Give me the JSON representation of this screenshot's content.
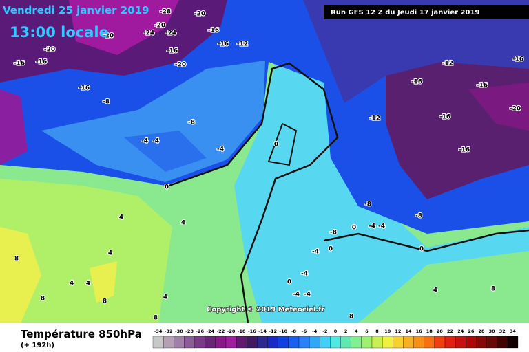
{
  "header": {
    "date": "Vendredi 25 janvier 2019",
    "time": "13:00 locale",
    "run": "Run GFS 12 Z du Jeudi 17 janvier 2019"
  },
  "footer": {
    "title": "Température 850hPa",
    "lead": "(+ 192h)",
    "copyright": "Copyright © 2019 Meteociel.fr"
  },
  "legend": {
    "ticks": [
      -34,
      -32,
      -30,
      -28,
      -26,
      -24,
      -22,
      -20,
      -18,
      -16,
      -14,
      -12,
      -10,
      -8,
      -6,
      -4,
      -2,
      0,
      2,
      4,
      6,
      8,
      10,
      12,
      14,
      16,
      18,
      20,
      22,
      24,
      26,
      28,
      30,
      32,
      34
    ],
    "colors": [
      "#c8c8c8",
      "#b4a0b4",
      "#a080a8",
      "#8c5c98",
      "#7a3a88",
      "#6a2478",
      "#8a1a8a",
      "#a020a0",
      "#601a70",
      "#401a60",
      "#2a2a90",
      "#1a28c8",
      "#1040e0",
      "#1a60f0",
      "#2a80f8",
      "#30a8f8",
      "#40d0f8",
      "#50e8e0",
      "#60e8b0",
      "#80f090",
      "#a0f070",
      "#c8f050",
      "#f0f040",
      "#f8d030",
      "#f8b020",
      "#f89018",
      "#f87010",
      "#f04010",
      "#e02010",
      "#c81010",
      "#a80808",
      "#880808",
      "#680808",
      "#400404",
      "#100000"
    ]
  },
  "contour_labels": [
    -28,
    -20,
    -20,
    -24,
    -24,
    -16,
    -20,
    -16,
    -12,
    -20,
    -16,
    -16,
    -16,
    -20,
    -16,
    -8,
    -8,
    -4,
    -4,
    -4,
    0,
    0,
    -12,
    -16,
    -16,
    -16,
    -20,
    -16,
    -12,
    -16,
    -8,
    -8,
    -8,
    -4,
    -4,
    0,
    0,
    0,
    -4,
    -4,
    0,
    -4,
    -4,
    4,
    4,
    4,
    4,
    4,
    8,
    8,
    8,
    4,
    4,
    8,
    8,
    8
  ]
}
